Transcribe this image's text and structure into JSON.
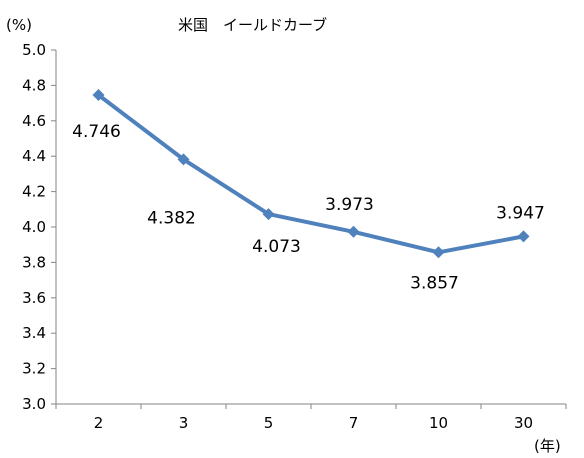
{
  "chart_data": {
    "type": "line",
    "title": "米国　イールドカーブ",
    "ylabel": "(%)",
    "xlabel": "(年)",
    "categories": [
      "2",
      "3",
      "5",
      "7",
      "10",
      "30"
    ],
    "series": [
      {
        "values": [
          4.746,
          4.382,
          4.073,
          3.973,
          3.857,
          3.947
        ]
      }
    ],
    "data_labels": [
      "4.746",
      "4.382",
      "4.073",
      "3.973",
      "3.857",
      "3.947"
    ],
    "ylim": [
      3.0,
      5.0
    ],
    "yticks": [
      "3.0",
      "3.2",
      "3.4",
      "3.6",
      "3.8",
      "4.0",
      "4.2",
      "4.4",
      "4.6",
      "4.8",
      "5.0"
    ],
    "grid": false,
    "legend": "none",
    "line_color": "#4F81BD"
  }
}
